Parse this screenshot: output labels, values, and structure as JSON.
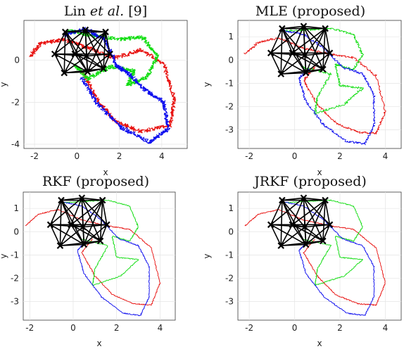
{
  "chart_data": [
    {
      "type": "line",
      "title_parts": [
        "Lin ",
        "et al.",
        " [9]"
      ],
      "xlabel": "x",
      "ylabel": "y",
      "xlim": [
        -2.5,
        5.2
      ],
      "ylim": [
        -4.2,
        1.9
      ],
      "xticks": [
        -2,
        0,
        2,
        4
      ],
      "yticks": [
        -4,
        -2,
        0
      ],
      "grid": true,
      "shape": "wide",
      "noise": "heavy",
      "series_colors": {
        "red": "#e8110f",
        "green": "#11dd11",
        "blue": "#0a0aee"
      }
    },
    {
      "type": "line",
      "title": "MLE (proposed)",
      "xlabel": "x",
      "ylabel": "y",
      "xlim": [
        -2.5,
        4.7
      ],
      "ylim": [
        -3.8,
        1.7
      ],
      "xticks": [
        -2,
        0,
        2,
        4
      ],
      "yticks": [
        -3,
        -2,
        -1,
        0,
        1
      ],
      "grid": true,
      "shape": "loops",
      "noise": "medium",
      "series_colors": {
        "red": "#e8110f",
        "green": "#11dd11",
        "blue": "#0a0aee"
      }
    },
    {
      "type": "line",
      "title": "RKF (proposed)",
      "xlabel": "x",
      "ylabel": "y",
      "xlim": [
        -2.3,
        4.7
      ],
      "ylim": [
        -3.8,
        1.7
      ],
      "xticks": [
        -2,
        0,
        2,
        4
      ],
      "yticks": [
        -3,
        -2,
        -1,
        0,
        1
      ],
      "grid": true,
      "shape": "loops",
      "noise": "light",
      "series_colors": {
        "red": "#e8110f",
        "green": "#11dd11",
        "blue": "#0a0aee"
      }
    },
    {
      "type": "line",
      "title": "JRKF (proposed)",
      "xlabel": "x",
      "ylabel": "y",
      "xlim": [
        -2.5,
        4.7
      ],
      "ylim": [
        -3.8,
        1.7
      ],
      "xticks": [
        -2,
        0,
        2,
        4
      ],
      "yticks": [
        -3,
        -2,
        -1,
        0,
        1
      ],
      "grid": true,
      "shape": "loops",
      "noise": "light",
      "series_colors": {
        "red": "#e8110f",
        "green": "#11dd11",
        "blue": "#0a0aee"
      }
    }
  ],
  "network": {
    "nodes": [
      [
        -0.55,
        1.35
      ],
      [
        0.4,
        1.45
      ],
      [
        1.35,
        1.35
      ],
      [
        -1.05,
        0.3
      ],
      [
        -0.1,
        0.3
      ],
      [
        0.45,
        0.2
      ],
      [
        1.55,
        0.3
      ],
      [
        -0.6,
        -0.6
      ],
      [
        0.5,
        -0.55
      ],
      [
        1.25,
        -0.4
      ]
    ],
    "edge_color": "#000000"
  }
}
